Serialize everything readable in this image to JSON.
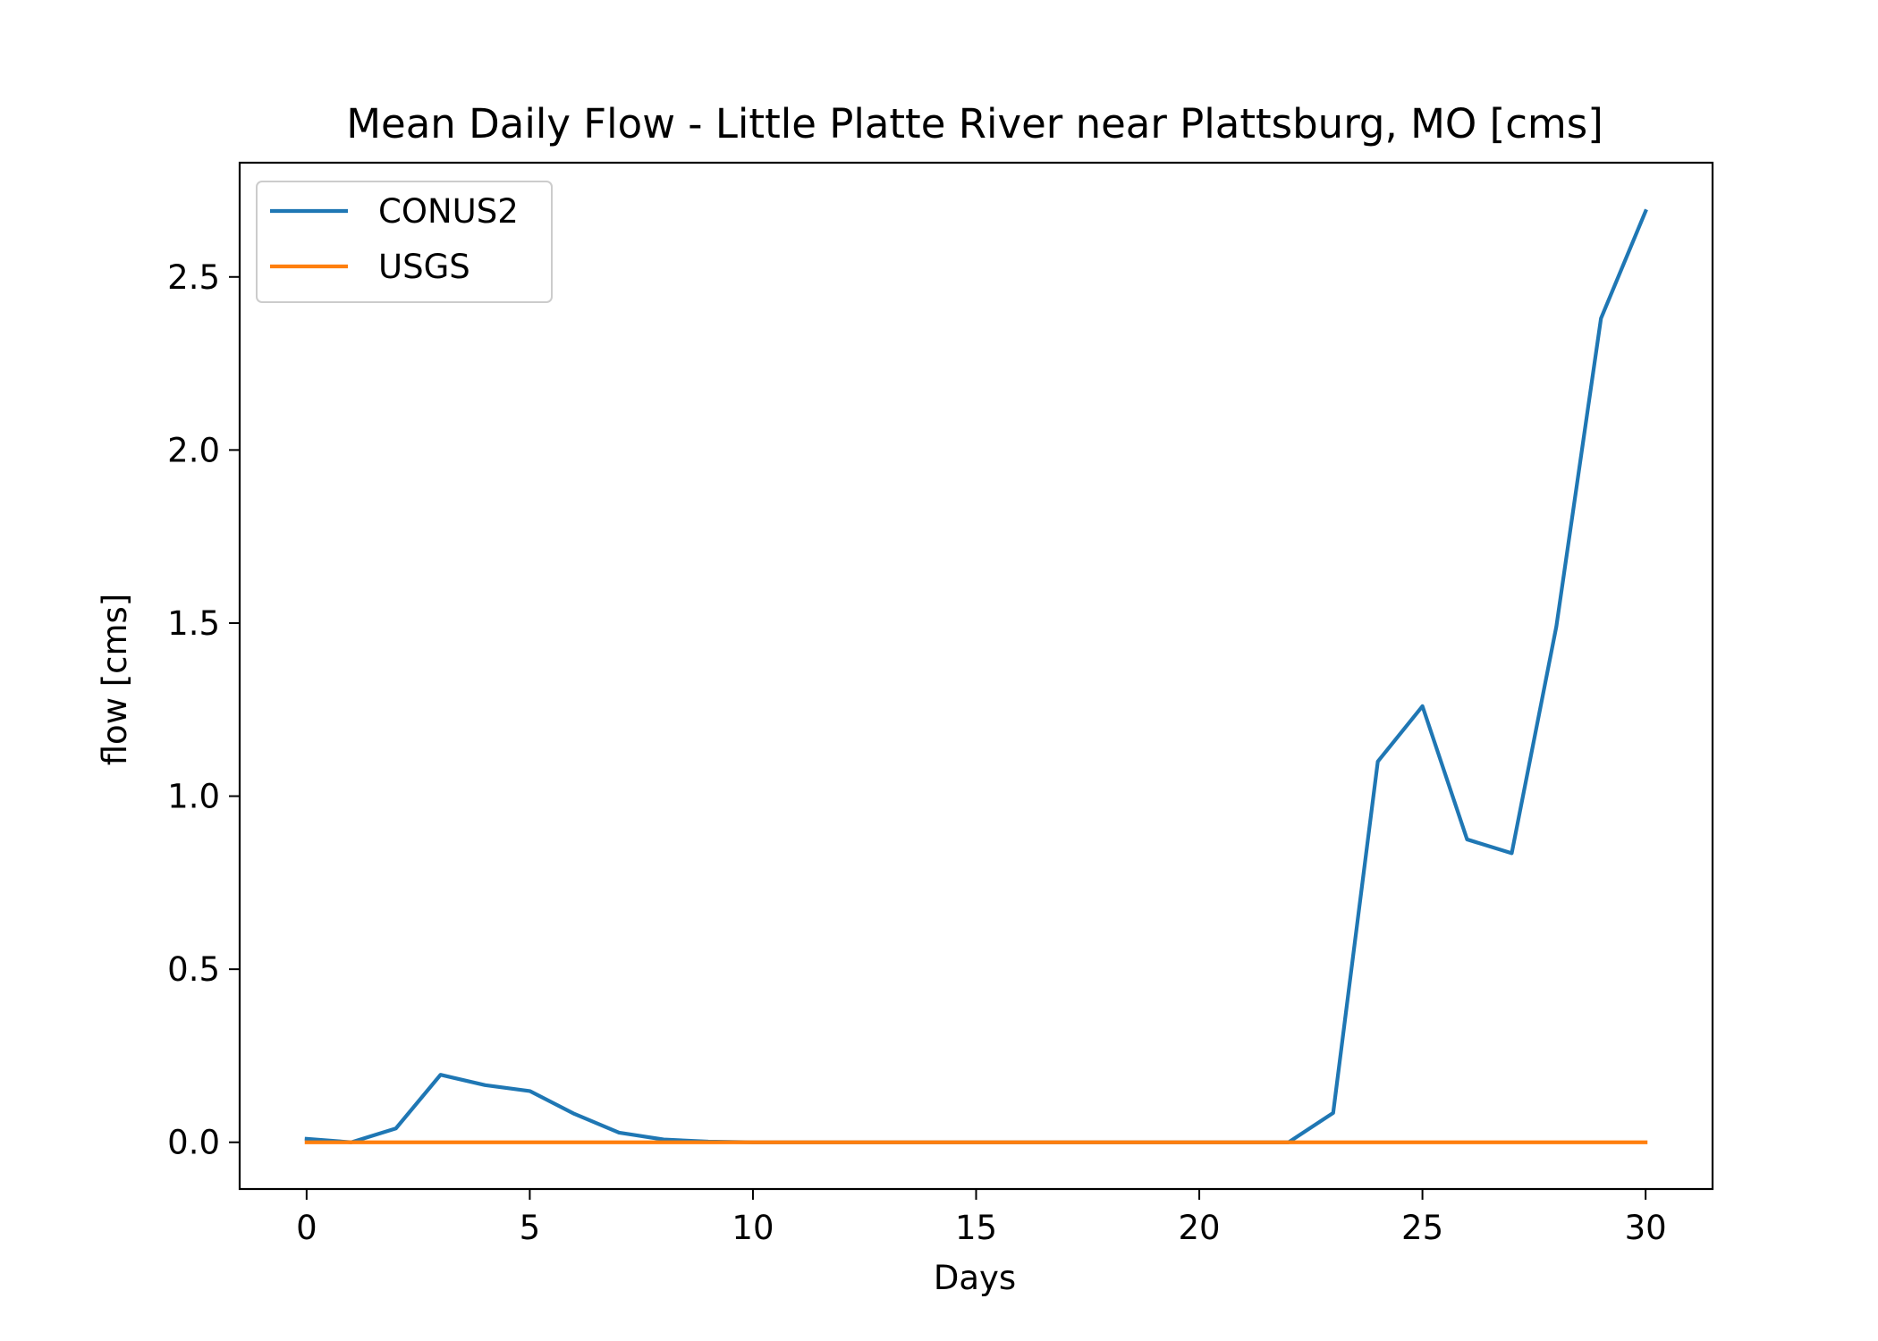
{
  "chart_data": {
    "type": "line",
    "title": "Mean Daily Flow - Little Platte River near Plattsburg, MO [cms]",
    "xlabel": "Days",
    "ylabel": "flow [cms]",
    "xlim": [
      -1.5,
      31.5
    ],
    "ylim": [
      -0.135,
      2.83
    ],
    "xticks": [
      0,
      5,
      10,
      15,
      20,
      25,
      30
    ],
    "yticks": [
      0.0,
      0.5,
      1.0,
      1.5,
      2.0,
      2.5
    ],
    "xtick_labels": [
      "0",
      "5",
      "10",
      "15",
      "20",
      "25",
      "30"
    ],
    "ytick_labels": [
      "0.0",
      "0.5",
      "1.0",
      "1.5",
      "2.0",
      "2.5"
    ],
    "legend_position": "top-left",
    "grid": false,
    "x": [
      0,
      1,
      2,
      3,
      4,
      5,
      6,
      7,
      8,
      9,
      10,
      11,
      12,
      13,
      14,
      15,
      16,
      17,
      18,
      19,
      20,
      21,
      22,
      23,
      24,
      25,
      26,
      27,
      28,
      29,
      30
    ],
    "series": [
      {
        "name": "CONUS2",
        "color": "#1f77b4",
        "values": [
          0.01,
          0.0,
          0.04,
          0.195,
          0.165,
          0.148,
          0.082,
          0.028,
          0.008,
          0.002,
          0.0,
          0.0,
          0.0,
          0.0,
          0.0,
          0.0,
          0.0,
          0.0,
          0.0,
          0.0,
          0.0,
          0.0,
          0.0,
          0.085,
          1.1,
          1.26,
          0.875,
          0.835,
          1.49,
          2.38,
          2.69
        ]
      },
      {
        "name": "USGS",
        "color": "#ff7f0e",
        "values": [
          0,
          0,
          0,
          0,
          0,
          0,
          0,
          0,
          0,
          0,
          0,
          0,
          0,
          0,
          0,
          0,
          0,
          0,
          0,
          0,
          0,
          0,
          0,
          0,
          0,
          0,
          0,
          0,
          0,
          0,
          0
        ]
      }
    ]
  }
}
